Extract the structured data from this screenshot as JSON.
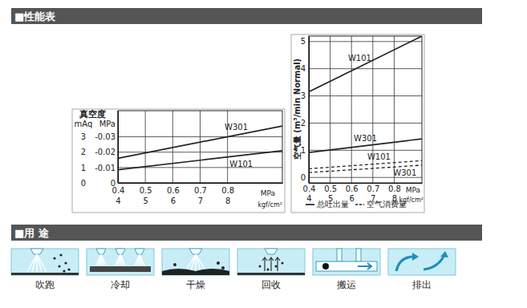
{
  "sections": [
    {
      "title": "■性能表"
    },
    {
      "title": "■用 途"
    }
  ],
  "chart_data": [
    {
      "type": "line",
      "ylabel": "真空度",
      "y_unit": "mAq",
      "y2_unit": "MPa",
      "x_unit": "MPa",
      "x2_unit": "kgf/cm²",
      "x": [
        0.4,
        1.0
      ],
      "xlim": [
        0.4,
        1.0
      ],
      "xticks": [
        0.4,
        0.5,
        0.6,
        0.7,
        0.8
      ],
      "x2lim": [
        4,
        10
      ],
      "x2ticks": [
        4,
        5,
        6,
        7,
        8
      ],
      "ylim": [
        0,
        4.7
      ],
      "yticks": [
        0,
        1,
        2,
        3
      ],
      "y2lim": [
        0,
        -0.047
      ],
      "y2ticks": [
        0,
        -0.01,
        -0.02,
        -0.03
      ],
      "grid": true,
      "series": [
        {
          "name": "W301",
          "color": "#222222",
          "line_style": "solid",
          "values": [
            1.6,
            3.7
          ]
        },
        {
          "name": "W101",
          "color": "#222222",
          "line_style": "solid",
          "values": [
            0.85,
            2.1
          ]
        }
      ]
    },
    {
      "type": "line",
      "ylabel": "空气量 (m³/min Normal)",
      "x_unit": "MPa",
      "x2_unit": "kgf/cm²",
      "x": [
        0.4,
        0.93
      ],
      "xlim": [
        0.4,
        0.93
      ],
      "xticks": [
        0.4,
        0.5,
        0.6,
        0.7,
        0.8
      ],
      "x2lim": [
        4,
        9.3
      ],
      "x2ticks": [
        4,
        5,
        6,
        7,
        8
      ],
      "ylim": [
        -0.2,
        5.2
      ],
      "yticks": [
        0,
        1,
        2,
        3,
        4,
        5
      ],
      "grid": true,
      "series": [
        {
          "name": "W101",
          "color": "#222222",
          "line_style": "solid",
          "values": [
            3.15,
            5.2
          ]
        },
        {
          "name": "W301",
          "color": "#222222",
          "line_style": "solid",
          "values": [
            0.92,
            1.42
          ]
        },
        {
          "name": "W101",
          "color": "#222222",
          "line_style": "dashed",
          "values": [
            0.32,
            0.62
          ]
        },
        {
          "name": "W301",
          "color": "#222222",
          "line_style": "dashed",
          "values": [
            0.18,
            0.45
          ]
        }
      ],
      "legend_entries": [
        {
          "label": "总吐出量",
          "line_style": "solid"
        },
        {
          "label": "空气消费量",
          "line_style": "dashed"
        }
      ]
    }
  ],
  "uses": [
    "吹跑",
    "冷却",
    "干燥",
    "回收",
    "搬运",
    "排出"
  ]
}
